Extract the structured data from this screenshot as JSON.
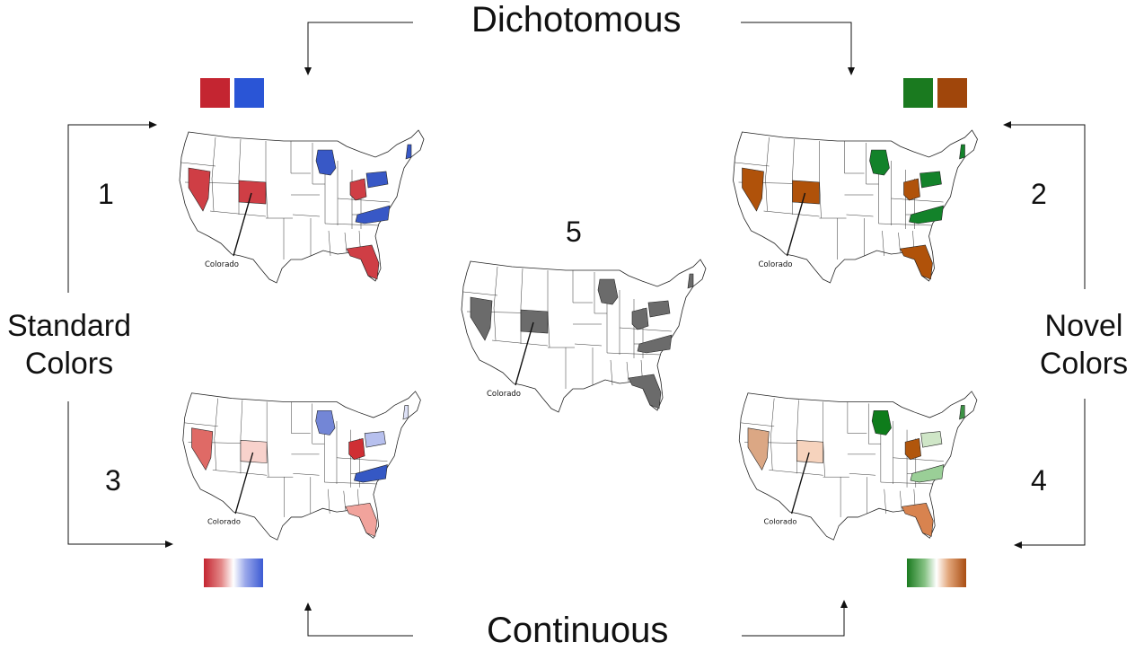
{
  "labels": {
    "dichotomous": "Dichotomous",
    "continuous": "Continuous",
    "standard": [
      "Standard",
      "Colors"
    ],
    "novel": [
      "Novel",
      "Colors"
    ],
    "map_numbers": [
      "1",
      "2",
      "3",
      "4",
      "5"
    ],
    "colorado": "Colorado"
  },
  "colors": {
    "standard_red": "#c42531",
    "standard_blue": "#2a55d6",
    "novel_green": "#1a7a1f",
    "novel_orange": "#a0460b",
    "neutral_gray": "#6b6b6b"
  },
  "maps": [
    {
      "id": "1",
      "scheme": "dichotomous-standard",
      "highlighted": {
        "nevada": "#cf3e45",
        "colorado": "#cf3e45",
        "ohio": "#cf3e45",
        "florida": "#cf3e45",
        "wisconsin": "#3858c6",
        "pennsylvania": "#3858c6",
        "north-carolina": "#3858c6",
        "new-hampshire": "#3858c6"
      }
    },
    {
      "id": "2",
      "scheme": "dichotomous-novel",
      "highlighted": {
        "nevada": "#b0520a",
        "colorado": "#b0520a",
        "ohio": "#b0520a",
        "florida": "#b0520a",
        "wisconsin": "#13822a",
        "pennsylvania": "#13822a",
        "north-carolina": "#13822a",
        "new-hampshire": "#13822a"
      }
    },
    {
      "id": "3",
      "scheme": "continuous-standard",
      "highlighted": {
        "nevada": "#df6a66",
        "colorado": "#f8d2cc",
        "ohio": "#cf2f34",
        "florida": "#f1a39c",
        "wisconsin": "#7386d6",
        "pennsylvania": "#b7c0ee",
        "north-carolina": "#3558c4",
        "new-hampshire": "#dde1f6"
      }
    },
    {
      "id": "4",
      "scheme": "continuous-novel",
      "highlighted": {
        "nevada": "#dba784",
        "colorado": "#f6d3bd",
        "ohio": "#b1560c",
        "florida": "#d8834f",
        "wisconsin": "#0e7c1b",
        "pennsylvania": "#cfe6c7",
        "north-carolina": "#9acf97",
        "new-hampshire": "#3c9245"
      }
    },
    {
      "id": "5",
      "scheme": "gray",
      "highlighted": {
        "nevada": "#6b6b6b",
        "colorado": "#6b6b6b",
        "ohio": "#6b6b6b",
        "florida": "#6b6b6b",
        "wisconsin": "#6b6b6b",
        "pennsylvania": "#6b6b6b",
        "north-carolina": "#6b6b6b",
        "new-hampshire": "#6b6b6b"
      }
    }
  ]
}
